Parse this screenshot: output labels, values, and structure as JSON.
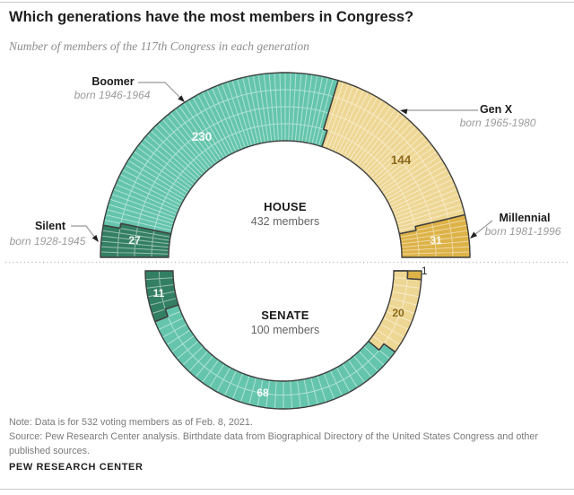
{
  "header": {
    "title": "Which generations have the most members in Congress?",
    "subtitle": "Number of members of the 117th Congress in each generation"
  },
  "chart_data": {
    "type": "donut-unit-chart",
    "legend_position": "callouts",
    "generations": [
      {
        "name": "Boomer",
        "born": "born 1946-1964",
        "color": "#64c5ac"
      },
      {
        "name": "Gen X",
        "born": "born 1965-1980",
        "color": "#eed794"
      },
      {
        "name": "Silent",
        "born": "born 1928-1945",
        "color": "#337f63"
      },
      {
        "name": "Millennial",
        "born": "born 1981-1996",
        "color": "#ddb247"
      }
    ],
    "house": {
      "label": "HOUSE",
      "members_label": "432 members",
      "total": 432,
      "rings": 4,
      "segments": [
        {
          "generation": "Silent",
          "value": 27
        },
        {
          "generation": "Boomer",
          "value": 230
        },
        {
          "generation": "Gen X",
          "value": 144
        },
        {
          "generation": "Millennial",
          "value": 31
        }
      ]
    },
    "senate": {
      "label": "SENATE",
      "members_label": "100 members",
      "total": 100,
      "rings": 2,
      "segments": [
        {
          "generation": "Silent",
          "value": 11
        },
        {
          "generation": "Boomer",
          "value": 68
        },
        {
          "generation": "Gen X",
          "value": 20
        },
        {
          "generation": "Millennial",
          "value": 1
        }
      ]
    }
  },
  "footer": {
    "note": "Note: Data is for 532 voting members as of Feb. 8, 2021.",
    "source": "Source: Pew Research Center analysis. Birthdate data from Biographical Directory of the United States Congress and other published sources.",
    "brand": "PEW RESEARCH CENTER"
  }
}
